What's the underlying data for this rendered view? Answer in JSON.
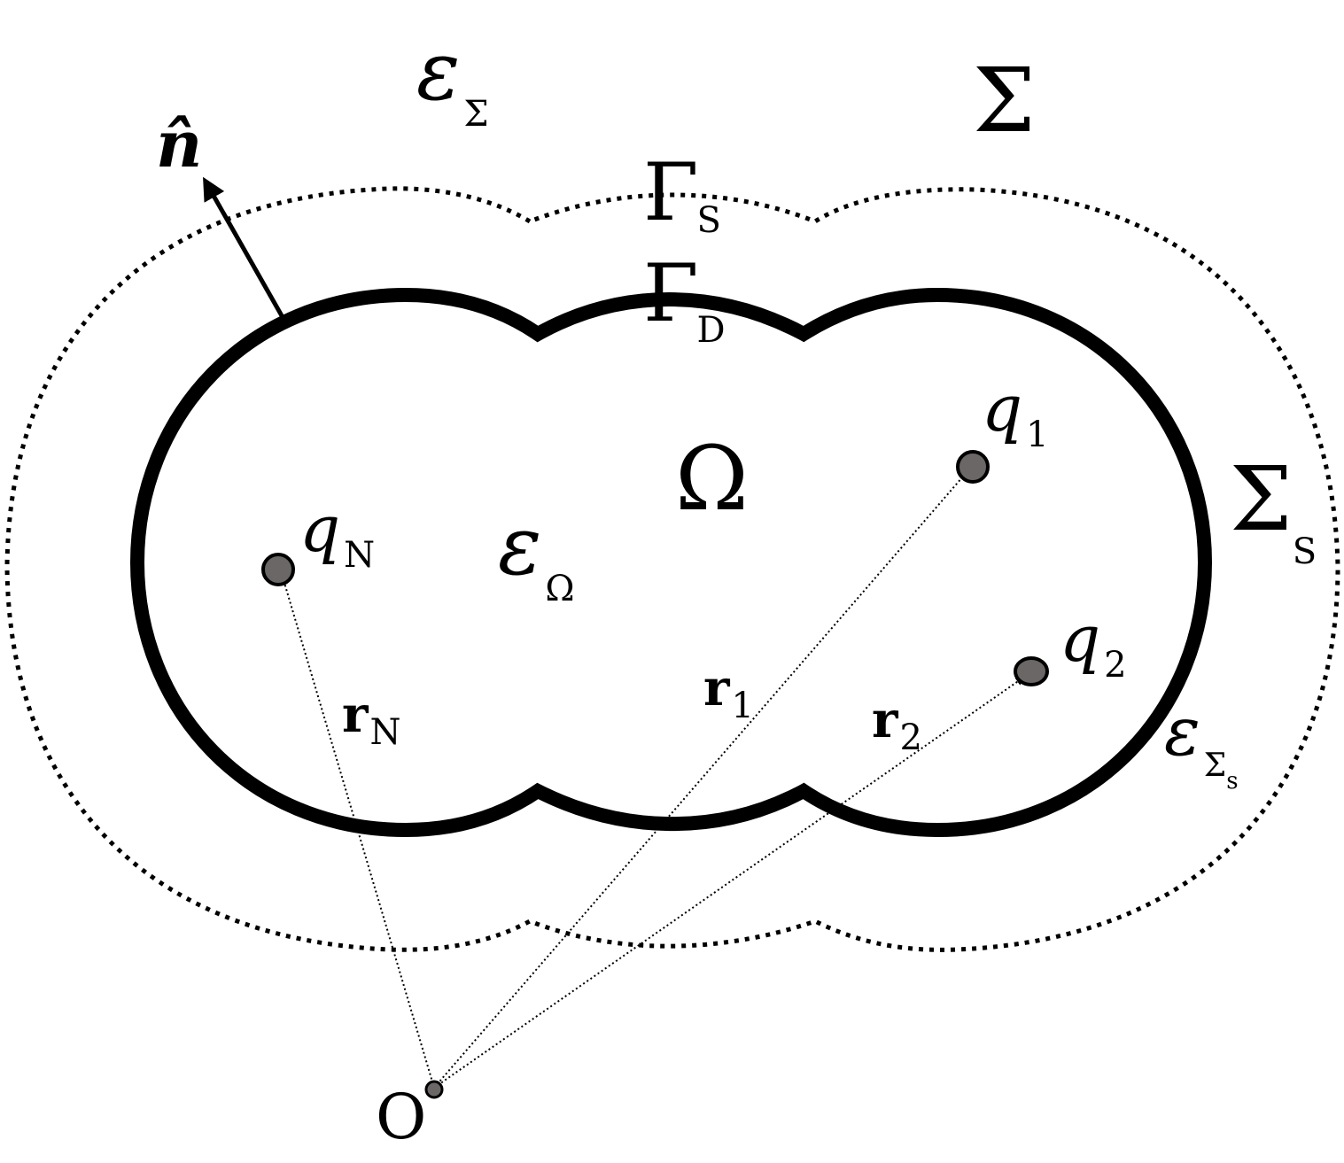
{
  "diagram": {
    "labels": {
      "epsilon_sigma": {
        "main": "ε",
        "sub": "Σ"
      },
      "sigma": "Σ",
      "normal": "n̂",
      "gamma_s": {
        "main": "Γ",
        "sub": "S"
      },
      "gamma_d": {
        "main": "Γ",
        "sub": "D"
      },
      "omega": "Ω",
      "epsilon_omega": {
        "main": "ε",
        "sub": "Ω"
      },
      "sigma_s": {
        "main": "Σ",
        "sub": "S"
      },
      "epsilon_sigma_s": {
        "main": "ε",
        "sub": "Σ",
        "subsub": "s"
      },
      "q1": {
        "main": "q",
        "sub": "1"
      },
      "q2": {
        "main": "q",
        "sub": "2"
      },
      "qN": {
        "main": "q",
        "sub": "N"
      },
      "r1": {
        "main": "r",
        "sub": "1"
      },
      "r2": {
        "main": "r",
        "sub": "2"
      },
      "rN": {
        "main": "r",
        "sub": "N"
      },
      "origin": "O"
    },
    "colors": {
      "stroke": "#000000",
      "charge_fill": "#6b6766",
      "background": "#ffffff"
    }
  }
}
